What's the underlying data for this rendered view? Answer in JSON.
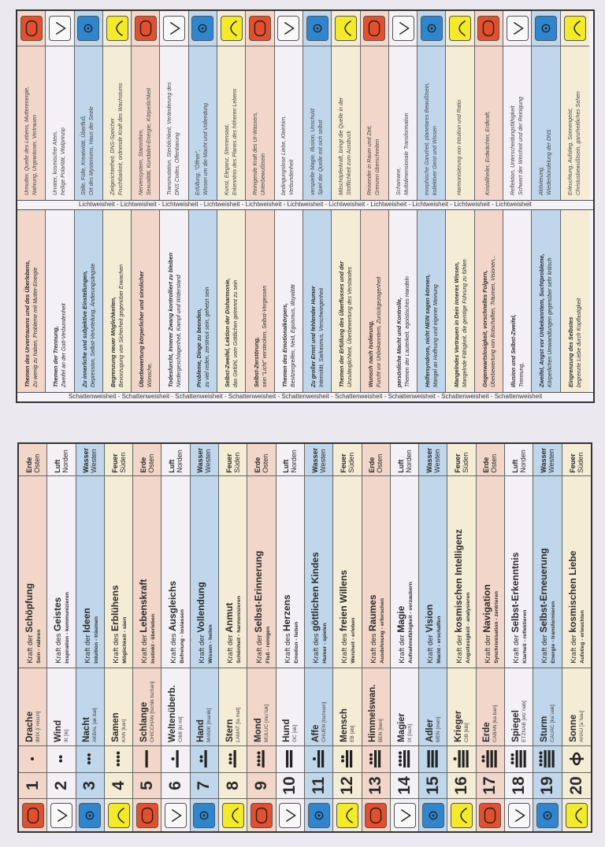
{
  "strips": {
    "shadow": "Schattenweisheit - Schattenweisheit - Schattenweisheit - Schattenweisheit - Schattenweisheit - Schattenweisheit - Schattenweisheit - Schattenweisheit - Schattenweisheit",
    "light": "Lichtweisheit - Lichtweisheit - Lichtweisheit - Lichtweisheit - Lichtweisheit - Lichtweisheit - Lichtweisheit - Lichtweisheit - Lichtweisheit - Lichtweisheit - Lichtweisheit"
  },
  "colors": {
    "Erde": "#e4502d",
    "Luft": "#f8f8f8",
    "Wasser": "#2f86cf",
    "Feuer": "#f2ea2a"
  },
  "rows": [
    {
      "num": "1",
      "name": "Drache",
      "maya": "IMIX [i´misch]",
      "kraft_prefix": "Kraft der",
      "kraft": "Schöpfung",
      "keywords": "Sein - nähren",
      "element": "Erde",
      "direction": "Osten",
      "shadow1": "Themen des Urvertrauens und des Überlebens,",
      "shadow2": "Zu wenig zu haben, Probleme mit Mutter-Energie",
      "light1": "Urmutter, Quelle des Lebens, Mutterenergie,",
      "light2": "Nahrung, Urgewässer, Vertrauen"
    },
    {
      "num": "2",
      "name": "Wind",
      "maya": "IK [ik]",
      "kraft_prefix": "Kraft des",
      "kraft": "Geistes",
      "keywords": "Inspiration - kommunizieren",
      "element": "Luft",
      "direction": "Norden",
      "shadow1": "Themen der Trennung,",
      "shadow2": "Zweifel an der Gott-Verbundenheit",
      "light1": "Urvater, kosmischer Atem,",
      "light2": "heilige Polarität, Vitalprinzip"
    },
    {
      "num": "3",
      "name": "Nacht",
      "maya": "AKBAL [ak bal]",
      "kraft_prefix": "Kraft der",
      "kraft": "Ideen",
      "keywords": "Intuition - träumen",
      "element": "Wasser",
      "direction": "Westen",
      "shadow1": "Zu innerliche und subjektive Einstellungen,",
      "shadow2": "Depression, Selbst-Verurteilung, Änderungsängste",
      "light1": "Stille, Fülle, Kreativität, Überfluß,",
      "light2": "Ort des Mysteriums, Haus der Seele"
    },
    {
      "num": "4",
      "name": "Samen",
      "maya": "KAN [kan]",
      "kraft_prefix": "Kraft des",
      "kraft": "Erblühens",
      "keywords": "Möglichkeit - säen",
      "element": "Feuer",
      "direction": "Süden",
      "shadow1": "Begrenzung neuer Möglichkeiten,",
      "shadow2": "Bevorzugung von Sicherheit gegenüber Erwachen",
      "light1": "Zielgerichtetheit, DNS-Speicher",
      "light2": "Fruchtbarkeit, ordnende Kraft des Wachstums"
    },
    {
      "num": "5",
      "name": "Schlange",
      "maya": "CHICCHAN [tschik tschan]",
      "kraft_prefix": "Kraft der",
      "kraft": "Lebenskraft",
      "keywords": "Instinkt - überleben",
      "element": "Erde",
      "direction": "Osten",
      "shadow1": "Überbewertung körperlicher und sinnlicher",
      "shadow2": "Wünsche,",
      "light1": "Nervensystem, Stammhirn,",
      "light2": "Sexualität, Kundalini-Energie, Körperlichkeit"
    },
    {
      "num": "6",
      "name": "Weltenüberb.",
      "maya": "CIMI [ki mi]",
      "kraft_prefix": "Kraft des",
      "kraft": "Ausgleichs",
      "keywords": "Befreiung - loslassen",
      "element": "Luft",
      "direction": "Norden",
      "shadow1": "Todesfurcht, Innerer Zwang kontrolliert zu bleiben",
      "shadow2": "Niedergeschlagenheit, Kampf und Widerstand",
      "light1": "Transmutation, Sterblichkeit, Veränderung des",
      "light2": "DNS Codes, Offenbarung"
    },
    {
      "num": "7",
      "name": "Hand",
      "maya": "MANIK [manik]",
      "kraft_prefix": "Kraft der",
      "kraft": "Vollendung",
      "keywords": "Wissen - heilen",
      "element": "Wasser",
      "direction": "Westen",
      "shadow1": "Probleme, Dinge zu beenden,",
      "shadow2": "zu viel reden, zerstreut sein, gehetzt sein",
      "light1": "Erfüllung, \"Öffner\",",
      "light2": "Wissen um die Macht und Vollendung"
    },
    {
      "num": "8",
      "name": "Stern",
      "maya": "LAMAT [la mat]",
      "kraft_prefix": "Kraft der",
      "kraft": "Anmut",
      "keywords": "Schönheit - harmonisieren",
      "element": "Feuer",
      "direction": "Süden",
      "shadow1": "Selbst-Zweifel, Lektion der Disharmonie,",
      "shadow2": "das Gefühl, vom Göttlichen getrennt zu sein",
      "light1": "Kunst, Eleganz, Sternensaat,",
      "light2": "Erkenntnis des Planes des höheren Lebens"
    },
    {
      "num": "9",
      "name": "Mond",
      "maya": "MULUC [mu´luk]",
      "kraft_prefix": "Kraft der",
      "kraft": "Selbst-Erinnerung",
      "keywords": "Fluß - reinigen",
      "element": "Erde",
      "direction": "Osten",
      "shadow1": "Selbst-Zerstörung,",
      "shadow2": "sein \"Licht\" verstecken, Selbst-Vergessen",
      "light1": "Reinigende Kraft des Ur-Wassers,",
      "light2": "Unterbewußtsein"
    },
    {
      "num": "10",
      "name": "Hund",
      "maya": "OC [ok]",
      "kraft_prefix": "Kraft des",
      "kraft": "Herzens",
      "keywords": "Emotion - lieben",
      "element": "Luft",
      "direction": "Norden",
      "shadow1": "Themen des Emotionalkörpers,",
      "shadow2": "Besitzergreifen, Neid, Egoismus, Illoyalität",
      "light1": "bedingungslose Liebe, Kleinhirn,",
      "light2": "Verbundenheit"
    },
    {
      "num": "11",
      "name": "Affe",
      "maya": "CHUEN [tschuen]",
      "kraft_prefix": "Kraft des",
      "kraft": "göttlichen Kindes",
      "keywords": "Humor - spielen",
      "element": "Wasser",
      "direction": "Westen",
      "shadow1": "Zu großer Ernst und fehlender Humor",
      "shadow2": "Intensität, Sarkasmus, Verschwiegenheit",
      "light1": "verspielte Magie, Illusion, Unschuld",
      "light2": "Spiel der Quelle mit sich selbst"
    },
    {
      "num": "12",
      "name": "Mensch",
      "maya": "EB [eb]",
      "kraft_prefix": "Kraft des",
      "kraft": "freien Willens",
      "keywords": "Weisheit - erleben",
      "element": "Feuer",
      "direction": "Süden",
      "shadow1": "Themen der Erfüllung des Überflusses und der",
      "shadow2": "Unzulänglichkeit, Überbewertung des Verstandes",
      "light1": "Mitschöpferkraft, bringt die Quelle in der",
      "light2": "Stofflichkeit zum Ausdruck"
    },
    {
      "num": "13",
      "name": "Himmelswan.",
      "maya": "BEN [ben]",
      "kraft_prefix": "Kraft des",
      "kraft": "Raumes",
      "keywords": "Ausdehnung - erforschen",
      "element": "Erde",
      "direction": "Osten",
      "shadow1": "Wunsch nach Isolierung,",
      "shadow2": "Furcht vor Unbekanntem, Zurückgezogenheit",
      "light1": "Reisender in Raum und Zeit,",
      "light2": "Grenzen überschreiten"
    },
    {
      "num": "14",
      "name": "Magier",
      "maya": "IX [isch]",
      "kraft_prefix": "Kraft der",
      "kraft": "Magie",
      "keywords": "Aufnahmefähigkeit - verzaubern",
      "element": "Luft",
      "direction": "Norden",
      "shadow1": "persönliche Macht und Kontrolle,",
      "shadow2": "Themen der Lauterkeit, egoistisches Handeln",
      "light1": "Schamane,",
      "light2": "Multidimensionale Transformation"
    },
    {
      "num": "15",
      "name": "Adler",
      "maya": "MEN [men]",
      "kraft_prefix": "Kraft der",
      "kraft": "Vision",
      "keywords": "Macht - erschaffen",
      "element": "Wasser",
      "direction": "Westen",
      "shadow1": "Helfersyndrom, nicht NEIN sagen können,",
      "shadow2": "Mangel an Hoffnung und eigener Meinung",
      "light1": "morphische Ganzheit, planetares Bewußtsein,",
      "light2": "kollektiver Geist und Wissen"
    },
    {
      "num": "16",
      "name": "Krieger",
      "maya": "CIB [kib]",
      "kraft_prefix": "Kraft der",
      "kraft": "kosmischen Intelligenz",
      "keywords": "Angstlosigkeit - analysieren",
      "element": "Feuer",
      "direction": "Süden",
      "shadow1": "Mangelndes Vertrauen in Dein inneres Wissen,",
      "shadow2": "Mangelnde Fähigkeit, die geistige Führung zu fühlen",
      "light1": "Harmonisierung von Intuition und Ratio",
      "light2": ""
    },
    {
      "num": "17",
      "name": "Erde",
      "maya": "CABAN [ka ban]",
      "kraft_prefix": "Kraft der",
      "kraft": "Navigation",
      "keywords": "Synchronisation - zentrieren",
      "element": "Erde",
      "direction": "Osten",
      "shadow1": "Gegenwartslosigkeit, vorschnelles Folgern,",
      "shadow2": "Überbewertung von Botschaften, Träumen, Visionen,..",
      "light1": "Kristallheiler, Erdwächter, Erdkraft,",
      "light2": ""
    },
    {
      "num": "18",
      "name": "Spiegel",
      "maya": "ETZNAB [etz´nab]",
      "kraft_prefix": "Kraft der",
      "kraft": "Selbst-Erkenntnis",
      "keywords": "Klarheit - reflektieren",
      "element": "Luft",
      "direction": "Norden",
      "shadow1": "Illusion und Selbst-Zweifel,",
      "shadow2": "Trennung,",
      "light1": "Reflektion, Unterscheidungsfähigkeit",
      "light2": "Schwert der Weisheit und der Reinigung"
    },
    {
      "num": "19",
      "name": "Sturm",
      "maya": "CAUAC [ka´uak]",
      "kraft_prefix": "Kraft der",
      "kraft": "Selbst-Erneuerung",
      "keywords": "Energie - transformieren",
      "element": "Wasser",
      "direction": "Westen",
      "shadow1": "Zweifel, Angst vor Unbekanntem, Suchtprobleme,",
      "shadow2": "Körperlichen Umwandlungen gegenüber sehr kritisch",
      "light1": "Aktivierung,",
      "light2": "Wiederbündelung der DNS"
    },
    {
      "num": "20",
      "name": "Sonne",
      "maya": "AHAU [a´hau]",
      "kraft_prefix": "Kraft der",
      "kraft": "kosmischen Liebe",
      "keywords": "Aufstieg - erleuchten",
      "element": "Feuer",
      "direction": "Süden",
      "shadow1": "Eingrenzung des Selbstes",
      "shadow2": "begrenzte Liebe durch Kopflastigkeit",
      "light1": "Erleuchtung, Aufstieg, Sonnengeist,",
      "light2": "Christusbewußtsein, ganzheitliches Sehen"
    }
  ]
}
